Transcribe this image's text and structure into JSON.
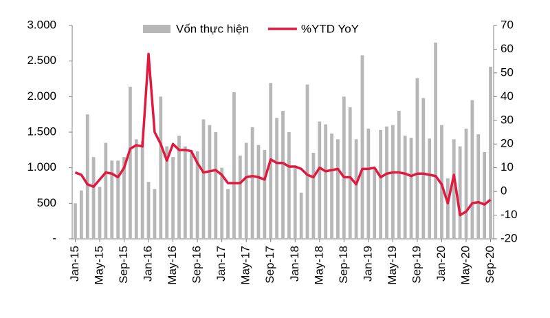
{
  "chart_data": {
    "type": "combo",
    "categories": [
      "Jan-15",
      null,
      null,
      null,
      "May-15",
      null,
      null,
      null,
      "Sep-15",
      null,
      null,
      null,
      "Jan-16",
      null,
      null,
      null,
      "May-16",
      null,
      null,
      null,
      "Sep-16",
      null,
      null,
      null,
      "Jan-17",
      null,
      null,
      null,
      "May-17",
      null,
      null,
      null,
      "Sep-17",
      null,
      null,
      null,
      "Jan-18",
      null,
      null,
      null,
      "May-18",
      null,
      null,
      null,
      "Sep-18",
      null,
      null,
      null,
      "Jan-19",
      null,
      null,
      null,
      "May-19",
      null,
      null,
      null,
      "Sep-19",
      null,
      null,
      null,
      "Jan-20",
      null,
      null,
      null,
      "May-20",
      null,
      null,
      null,
      "Sep-20"
    ],
    "series": [
      {
        "name": "Vốn thực hiện",
        "type": "bar",
        "color": "#b7b7b7",
        "values": [
          500,
          680,
          1750,
          1150,
          730,
          1350,
          1100,
          1100,
          1150,
          2140,
          1400,
          1380,
          800,
          700,
          2000,
          1300,
          1150,
          1450,
          1300,
          1250,
          1230,
          1680,
          1600,
          1500,
          1000,
          700,
          2060,
          1170,
          1350,
          1570,
          1320,
          1250,
          2190,
          1700,
          1800,
          1500,
          1000,
          650,
          2170,
          1210,
          1650,
          1610,
          1480,
          1400,
          2000,
          1850,
          1400,
          2580,
          1550,
          1000,
          1530,
          1580,
          1600,
          1800,
          1450,
          1420,
          2260,
          1980,
          1410,
          2760,
          1600,
          850,
          1400,
          1300,
          1550,
          1950,
          1470,
          1220,
          2420
        ]
      },
      {
        "name": "%YTD YoY",
        "type": "line",
        "axis": "y2",
        "color": "#e0193f",
        "values": [
          8,
          7,
          3,
          2,
          5,
          8,
          7.5,
          6,
          10,
          18,
          19.5,
          19,
          58,
          25,
          20,
          13,
          20,
          17.5,
          17.5,
          17,
          12,
          8,
          8.5,
          9,
          7,
          3.5,
          3.5,
          3.5,
          6,
          6.5,
          6,
          5,
          13.5,
          12,
          12,
          10.5,
          10.5,
          9.5,
          7,
          6,
          10,
          8.5,
          9,
          9.5,
          6,
          6,
          3,
          9.5,
          9.5,
          10,
          6,
          7.5,
          8,
          8,
          7.5,
          6.5,
          7.5,
          7.5,
          7,
          6.5,
          3,
          -5,
          7,
          -10,
          -8.5,
          -5,
          -4.5,
          -5.5,
          -3.5
        ]
      }
    ],
    "ylim": [
      0,
      3000
    ],
    "yticks": [
      {
        "value": 0,
        "label": "-"
      },
      500,
      {
        "value": 1000,
        "label": "1.000"
      },
      {
        "value": 1500,
        "label": "1.500"
      },
      {
        "value": 2000,
        "label": "2.000"
      },
      {
        "value": 2500,
        "label": "2.500"
      },
      {
        "value": 3000,
        "label": "3.000"
      }
    ],
    "y2lim": [
      -20,
      70
    ],
    "y2ticks": [
      -20,
      -10,
      0,
      10,
      20,
      30,
      40,
      50,
      60,
      70
    ],
    "legend": "top"
  }
}
